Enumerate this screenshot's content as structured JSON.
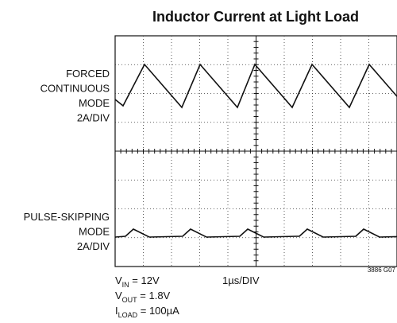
{
  "title": "Inductor Current at Light Load",
  "upper_label": [
    "FORCED",
    "CONTINUOUS",
    "MODE",
    "2A/DIV"
  ],
  "lower_label": [
    "PULSE-SKIPPING",
    "MODE",
    "2A/DIV"
  ],
  "time_scale": "1µs/DIV",
  "figure_id": "3886 G07",
  "conditions": [
    {
      "symbol": "V",
      "subscript": "IN",
      "text": " = 12V"
    },
    {
      "symbol": "V",
      "subscript": "OUT",
      "text": " = 1.8V"
    },
    {
      "symbol": "I",
      "subscript": "LOAD",
      "text": " = 100µA"
    }
  ]
}
